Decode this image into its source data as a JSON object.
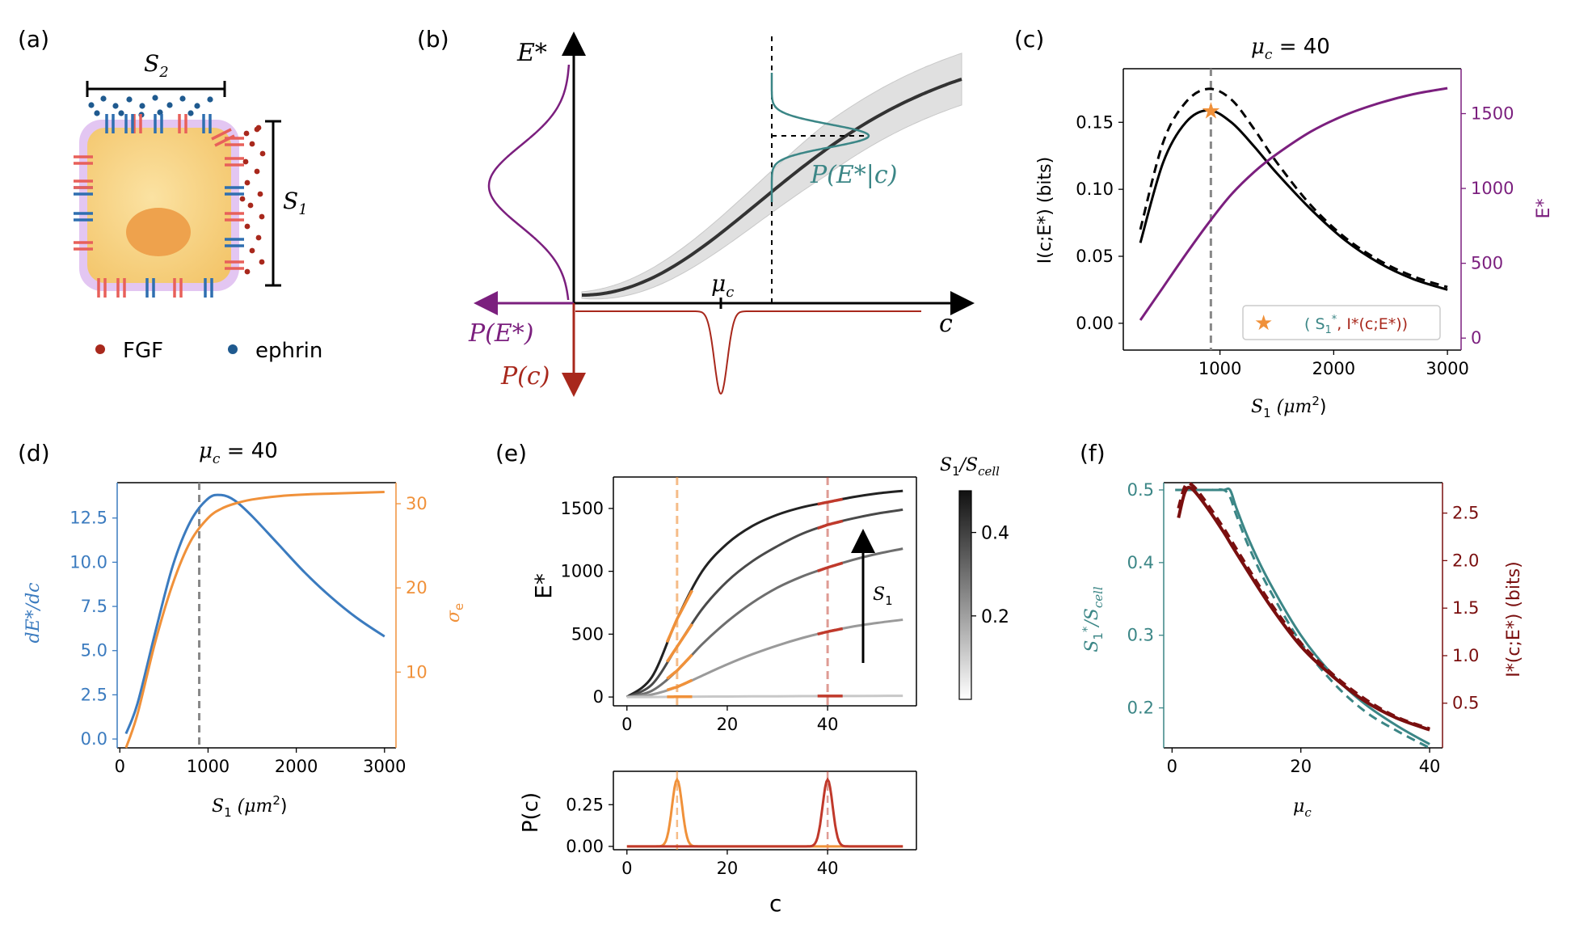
{
  "colors": {
    "teal": "#3b8686",
    "red": "#a8281c",
    "darkred": "#7a0f0f",
    "purple": "#7b1f7e",
    "blue": "#3b7bbf",
    "orange": "#f0913a",
    "gray": "#777777",
    "dark": "#222222"
  },
  "panel_labels": [
    "(a)",
    "(b)",
    "(c)",
    "(d)",
    "(e)",
    "(f)"
  ],
  "a": {
    "s2": "S",
    "s2_sub": "2",
    "s1": "S",
    "s1_sub": "1",
    "fgf": "FGF",
    "ephrin": "ephrin"
  },
  "b": {
    "y_axis": "E*",
    "x_axis": "c",
    "pe": "P(E*)",
    "pc": "P(c)",
    "pec": "P(E*|c)",
    "mu": "μ",
    "mu_sub": "c"
  },
  "c": {
    "title": "μ",
    "title_sub": "c",
    "title_tail": " = 40",
    "y_label": "I(c;E*) (bits)",
    "y2_label": "E*",
    "x_label_main": "S",
    "x_label_sub": "1",
    "x_label_unit": " (μm",
    "x_label_sup": "2",
    "x_label_end": ")",
    "legend_a": "( S",
    "legend_a_sub": "1",
    "legend_a_sup": "*",
    "legend_b": ",  I*(c;E*))"
  },
  "d": {
    "title": "μ",
    "title_sub": "c",
    "title_tail": " = 40",
    "y_label": "dE*/dc",
    "y2_label": "σ",
    "y2_sub": "e",
    "x_label_main": "S",
    "x_label_sub": "1",
    "x_label_unit": " (μm",
    "x_label_sup": "2",
    "x_label_end": ")"
  },
  "e": {
    "y_label": "E*",
    "x_label": "c",
    "py_label": "P(c)",
    "cbar_label": "S",
    "cbar_sub1": "1",
    "cbar_mid": "/S",
    "cbar_sub2": "cell",
    "arrow_label": "S",
    "arrow_sub": "1"
  },
  "f": {
    "y_label": "S",
    "y_sub": "1",
    "y_sup": "*",
    "y_tail": "/S",
    "y_sub2": "cell",
    "y2_label": "I*(c;E*) (bits)",
    "x_label": "μ",
    "x_sub": "c"
  },
  "chart_data": [
    {
      "panel": "c",
      "type": "line",
      "title": "μc = 40",
      "xlabel": "S1 (μm2)",
      "ylabel": "I(c;E*) (bits)",
      "y2label": "E*",
      "xlim": [
        150,
        3120
      ],
      "ylim": [
        -0.02,
        0.19
      ],
      "y2lim": [
        -80,
        1800
      ],
      "xticks": [
        1000,
        2000,
        3000
      ],
      "yticks": [
        0.0,
        0.05,
        0.1,
        0.15
      ],
      "y2ticks": [
        0,
        500,
        1000,
        1500
      ],
      "x": [
        300,
        500,
        700,
        900,
        1100,
        1300,
        1500,
        1800,
        2100,
        2400,
        2700,
        3000
      ],
      "series": [
        {
          "name": "I(c;E*) solid",
          "style": "solid",
          "color": "#000000",
          "values": [
            0.06,
            0.12,
            0.15,
            0.159,
            0.15,
            0.132,
            0.112,
            0.085,
            0.062,
            0.045,
            0.033,
            0.025
          ]
        },
        {
          "name": "I(c;E*) dashed",
          "style": "dashed",
          "color": "#000000",
          "values": [
            0.07,
            0.135,
            0.165,
            0.175,
            0.167,
            0.145,
            0.12,
            0.088,
            0.064,
            0.047,
            0.035,
            0.027
          ]
        },
        {
          "name": "E*",
          "axis": "right",
          "color": "#7b1f7e",
          "values": [
            120,
            340,
            560,
            770,
            960,
            1110,
            1230,
            1380,
            1490,
            1570,
            1630,
            1670
          ]
        }
      ],
      "vline": 920,
      "star": [
        920,
        0.159
      ],
      "legend": "( S1*, I*(c;E*))"
    },
    {
      "panel": "d",
      "type": "line",
      "title": "μc = 40",
      "xlabel": "S1 (μm2)",
      "ylabel": "dE*/dc",
      "y2label": "σe",
      "xlim": [
        -30,
        3130
      ],
      "ylim": [
        -0.5,
        14.5
      ],
      "y2lim": [
        1,
        32.5
      ],
      "xticks": [
        0,
        1000,
        2000,
        3000
      ],
      "yticks": [
        0.0,
        2.5,
        5.0,
        7.5,
        10.0,
        12.5
      ],
      "y2ticks": [
        10,
        20,
        30
      ],
      "x": [
        70,
        200,
        400,
        600,
        800,
        1000,
        1150,
        1300,
        1500,
        1800,
        2100,
        2400,
        2700,
        3000
      ],
      "series": [
        {
          "name": "dE*/dc",
          "color": "#3b7bbf",
          "values": [
            0.3,
            2.0,
            6.0,
            9.8,
            12.3,
            13.6,
            13.8,
            13.5,
            12.6,
            11.0,
            9.4,
            8.0,
            6.8,
            5.8
          ]
        },
        {
          "name": "σe",
          "axis": "right",
          "color": "#f0913a",
          "values": [
            1.0,
            5.0,
            13.5,
            20.5,
            25.5,
            28.3,
            29.4,
            30.0,
            30.5,
            30.9,
            31.1,
            31.2,
            31.3,
            31.4
          ]
        }
      ],
      "vline": 900
    },
    {
      "panel": "e",
      "type": "line",
      "xlabel": "c",
      "ylabel": "E*",
      "xlim": [
        -2.7,
        57.7
      ],
      "ylim": [
        -70,
        1750
      ],
      "xticks": [
        0,
        20,
        40
      ],
      "yticks": [
        0,
        500,
        1000,
        1500
      ],
      "x": [
        0,
        5,
        10,
        15,
        20,
        25,
        30,
        35,
        40,
        45,
        50,
        55
      ],
      "series": [
        {
          "name": "S1/Scell=0.5",
          "values": [
            0,
            160,
            620,
            1000,
            1220,
            1360,
            1450,
            1510,
            1550,
            1590,
            1620,
            1640
          ]
        },
        {
          "name": "S1/Scell=0.4",
          "values": [
            0,
            100,
            400,
            700,
            920,
            1080,
            1200,
            1300,
            1370,
            1420,
            1460,
            1490
          ]
        },
        {
          "name": "S1/Scell=0.3",
          "values": [
            0,
            50,
            210,
            420,
            600,
            750,
            870,
            960,
            1030,
            1090,
            1140,
            1180
          ]
        },
        {
          "name": "S1/Scell=0.2",
          "values": [
            0,
            20,
            80,
            170,
            260,
            340,
            410,
            470,
            520,
            560,
            590,
            615
          ]
        },
        {
          "name": "S1/Scell=0.0",
          "values": [
            0,
            0,
            2,
            3,
            4,
            5,
            6,
            7,
            8,
            8,
            9,
            10
          ]
        }
      ],
      "vlines": [
        10,
        40
      ],
      "colorbar": {
        "label": "S1/Scell",
        "ticks": [
          0.2,
          0.4
        ],
        "range": [
          0,
          0.5
        ]
      }
    },
    {
      "panel": "e-bottom",
      "type": "line",
      "xlabel": "c",
      "ylabel": "P(c)",
      "xlim": [
        -2.7,
        57.7
      ],
      "ylim": [
        -0.02,
        0.45
      ],
      "xticks": [
        0,
        20,
        40
      ],
      "yticks": [
        0.0,
        0.25
      ],
      "series": [
        {
          "name": "P(c) μc=10",
          "color": "#f0913a",
          "mean": 10,
          "sd": 1.0,
          "peak": 0.4
        },
        {
          "name": "P(c) μc=40",
          "color": "#c0392b",
          "mean": 40,
          "sd": 1.0,
          "peak": 0.4
        }
      ]
    },
    {
      "panel": "f",
      "type": "line",
      "xlabel": "μc",
      "ylabel": "S1*/Scell",
      "y2label": "I*(c;E*) (bits)",
      "xlim": [
        -1.3,
        42
      ],
      "ylim": [
        0.145,
        0.51
      ],
      "y2lim": [
        0.03,
        2.82
      ],
      "xticks": [
        0,
        20,
        40
      ],
      "yticks": [
        0.2,
        0.3,
        0.4,
        0.5
      ],
      "y2ticks": [
        0.5,
        1.0,
        1.5,
        2.0,
        2.5
      ],
      "series": [
        {
          "name": "S1* solid",
          "color": "#3b8686",
          "x": [
            0.5,
            2,
            4,
            6,
            8,
            9,
            10,
            12,
            15,
            20,
            25,
            30,
            35,
            40
          ],
          "values": [
            0.5,
            0.5,
            0.5,
            0.5,
            0.5,
            0.5,
            0.475,
            0.43,
            0.375,
            0.3,
            0.245,
            0.205,
            0.175,
            0.15
          ]
        },
        {
          "name": "S1* dashed",
          "color": "#3b8686",
          "style": "dashed",
          "x": [
            0.5,
            2,
            4,
            6,
            8,
            9,
            10,
            12,
            15,
            20,
            25,
            30,
            35,
            40
          ],
          "values": [
            0.5,
            0.5,
            0.5,
            0.5,
            0.5,
            0.49,
            0.465,
            0.42,
            0.365,
            0.29,
            0.235,
            0.195,
            0.168,
            0.145
          ]
        },
        {
          "name": "I* solid",
          "axis": "right",
          "color": "#7a0f0f",
          "x": [
            1,
            2,
            3,
            5,
            8,
            10,
            15,
            20,
            25,
            30,
            35,
            40
          ],
          "values": [
            2.45,
            2.72,
            2.76,
            2.6,
            2.3,
            2.08,
            1.55,
            1.1,
            0.78,
            0.52,
            0.34,
            0.22
          ]
        },
        {
          "name": "I* dashed",
          "axis": "right",
          "color": "#7a0f0f",
          "style": "dashed",
          "x": [
            1,
            2,
            3,
            5,
            8,
            10,
            15,
            20,
            25,
            30,
            35,
            40
          ],
          "values": [
            2.55,
            2.78,
            2.8,
            2.64,
            2.34,
            2.12,
            1.58,
            1.13,
            0.8,
            0.54,
            0.35,
            0.23
          ]
        }
      ]
    }
  ]
}
